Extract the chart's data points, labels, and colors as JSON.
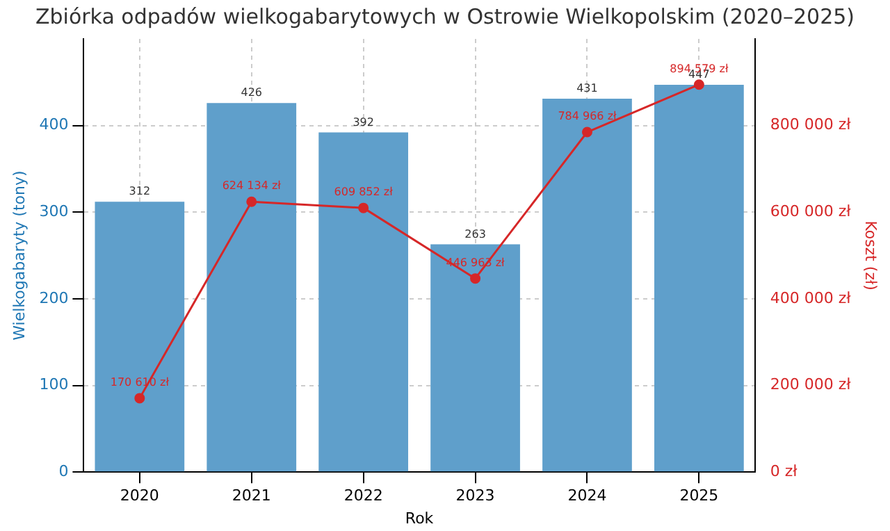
{
  "chart_data": {
    "type": "bar",
    "title": "Zbiórka odpadów wielkogabarytowych w Ostrowie Wielkopolskim (2020–2025)",
    "xlabel": "Rok",
    "ylabel": "Wielkogabaryty (tony)",
    "y2label": "Koszt (zł)",
    "categories": [
      "2020",
      "2021",
      "2022",
      "2023",
      "2024",
      "2025"
    ],
    "series": [
      {
        "color": "#5f9fcb",
        "values": [
          312,
          426,
          392,
          263,
          431,
          447
        ],
        "value_labels": [
          "312",
          "426",
          "392",
          "263",
          "431",
          "447"
        ]
      },
      {
        "type": "line",
        "axis": "y2",
        "color": "#d62728",
        "values": [
          170610,
          624134,
          609852,
          446963,
          784966,
          894579
        ],
        "value_labels": [
          "170 610 zł",
          "624 134 zł",
          "609 852 zł",
          "446 963 zł",
          "784 966 zł",
          "894 579 zł"
        ]
      }
    ],
    "ylim": [
      0,
      500
    ],
    "yticks": [
      0,
      100,
      200,
      300,
      400
    ],
    "y2lim": [
      0,
      1000000
    ],
    "y2ticks": [
      {
        "value": 0,
        "label": "0 zł"
      },
      {
        "value": 200000,
        "label": "200 000 zł"
      },
      {
        "value": 400000,
        "label": "400 000 zł"
      },
      {
        "value": 600000,
        "label": "600 000 zł"
      },
      {
        "value": 800000,
        "label": "800 000 zł"
      }
    ],
    "grid": true,
    "legend": false,
    "marker": "circle",
    "line_style": "solid"
  }
}
